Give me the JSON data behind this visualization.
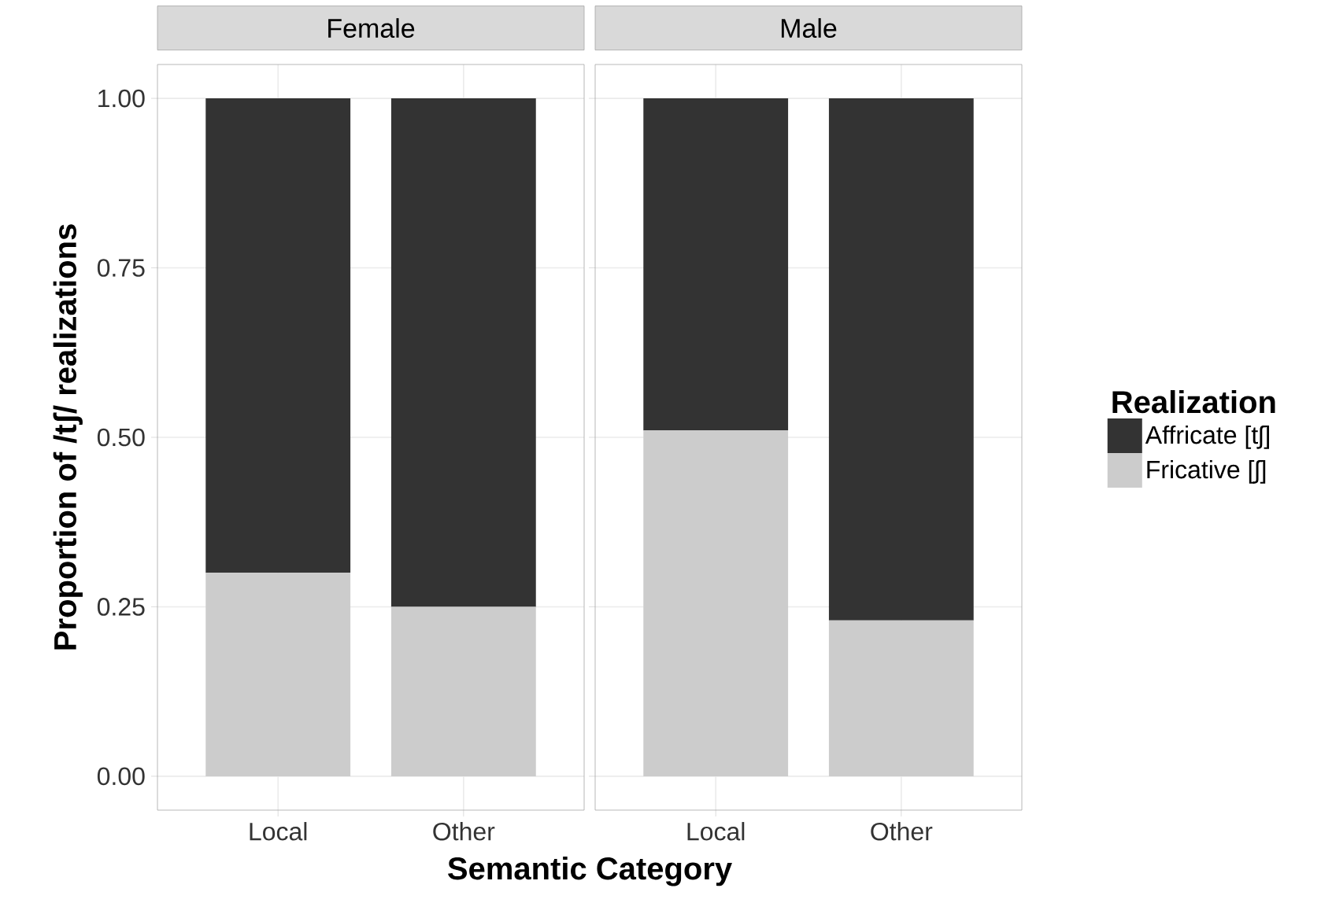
{
  "chart_data": [
    {
      "type": "bar",
      "title": "Female",
      "categories": [
        "Local",
        "Other"
      ],
      "stacked": true,
      "series": [
        {
          "color": "#cccccc",
          "values": [
            0.3,
            0.25
          ]
        },
        {
          "color": "#333333",
          "values": [
            0.7,
            0.75
          ]
        }
      ],
      "ylim": [
        -0.05,
        1.05
      ],
      "yticks": [
        {
          "value": 0,
          "label": "0.00"
        },
        {
          "value": 0.25,
          "label": "0.25"
        },
        {
          "value": 0.5,
          "label": "0.50"
        },
        {
          "value": 0.75,
          "label": "0.75"
        },
        {
          "value": 1,
          "label": "1.00"
        }
      ],
      "grid": true,
      "xlabel": "Semantic Category",
      "ylabel": "Proportion of /tʃ/ realizations"
    },
    {
      "type": "bar",
      "title": "Male",
      "categories": [
        "Local",
        "Other"
      ],
      "stacked": true,
      "series": [
        {
          "name": "Fricative [ʃ]",
          "color": "#cccccc",
          "values": [
            0.51,
            0.23
          ]
        },
        {
          "name": "Affricate [tʃ]",
          "color": "#333333",
          "values": [
            0.49,
            0.77
          ]
        }
      ],
      "ylim": [
        -0.05,
        1.05
      ],
      "yticks": [
        0,
        0.25,
        0.5,
        0.75,
        1
      ],
      "grid": true,
      "tick_labels": "x",
      "legend": "right",
      "legend_title": "Realization"
    }
  ]
}
